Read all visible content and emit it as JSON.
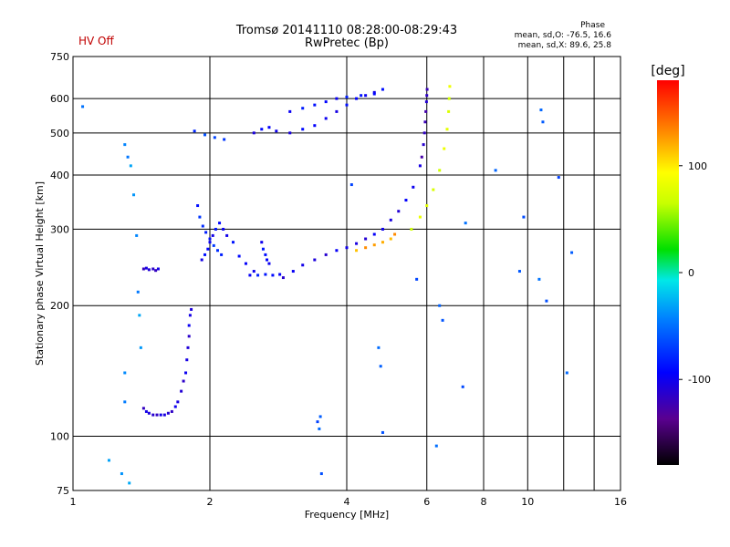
{
  "status": {
    "hv_label": "HV Off"
  },
  "header": {
    "title_line1": "Tromsø 20141110 08:28:00-08:29:43",
    "title_line2": "RwPretec (Bp)",
    "phase_title": "Phase",
    "phase_o": "mean, sd,O: -76.5, 16.6",
    "phase_x": "mean, sd,X: 89.6, 25.8"
  },
  "colorbar": {
    "unit_label": "[deg]",
    "ticks": [
      100,
      0,
      -100
    ],
    "range": [
      -180,
      180
    ]
  },
  "chart_data": {
    "type": "scatter",
    "xlabel": "Frequency [MHz]",
    "ylabel": "Stationary phase Virtual Height [km]",
    "xscale": "log",
    "yscale": "log",
    "xlim": [
      1,
      16
    ],
    "ylim": [
      75,
      750
    ],
    "xticks": [
      1,
      2,
      4,
      6,
      8,
      10,
      16
    ],
    "minor_xticks": [
      12,
      14
    ],
    "yticks": [
      75,
      100,
      200,
      300,
      400,
      500,
      600,
      750
    ],
    "grid": true,
    "series": [
      {
        "x": [
          1.43,
          1.45,
          1.47,
          1.5,
          1.53,
          1.56,
          1.59,
          1.62,
          1.65,
          1.68,
          1.7,
          1.73,
          1.75,
          1.77,
          1.78,
          1.79,
          1.8,
          1.8,
          1.81,
          1.82
        ],
        "y": [
          116,
          114,
          113,
          112,
          112,
          112,
          112,
          113,
          114,
          117,
          120,
          127,
          134,
          140,
          150,
          160,
          170,
          180,
          190,
          196
        ],
        "phase": -110
      },
      {
        "x": [
          1.43,
          1.45,
          1.47,
          1.5,
          1.52,
          1.54
        ],
        "y": [
          243,
          244,
          242,
          243,
          241,
          243
        ],
        "phase": -112
      },
      {
        "x": [
          1.92,
          1.95,
          1.98,
          2.0,
          2.03,
          2.06,
          2.1,
          2.14,
          2.18,
          2.25,
          2.32,
          2.4,
          2.5
        ],
        "y": [
          255,
          262,
          270,
          280,
          290,
          300,
          310,
          300,
          290,
          280,
          260,
          250,
          240
        ],
        "phase": -95
      },
      {
        "x": [
          1.88,
          1.9,
          1.93,
          1.96,
          2.0,
          2.04,
          2.08,
          2.12
        ],
        "y": [
          340,
          320,
          305,
          295,
          285,
          275,
          268,
          262
        ],
        "phase": -80
      },
      {
        "x": [
          2.45,
          2.55,
          2.65,
          2.75,
          2.85
        ],
        "y": [
          235,
          235,
          236,
          235,
          236
        ],
        "phase": -88
      },
      {
        "x": [
          2.6,
          2.62,
          2.65,
          2.67,
          2.7
        ],
        "y": [
          280,
          270,
          262,
          255,
          250
        ],
        "phase": -92
      },
      {
        "x": [
          2.9,
          3.05,
          3.2,
          3.4,
          3.6,
          3.8,
          4.0,
          4.2,
          4.4,
          4.6,
          4.8,
          5.0,
          5.2,
          5.4,
          5.6,
          5.8
        ],
        "y": [
          232,
          240,
          248,
          255,
          262,
          268,
          272,
          278,
          285,
          292,
          300,
          315,
          330,
          350,
          375,
          420
        ],
        "phase": -105
      },
      {
        "x": [
          5.85,
          5.9,
          5.93,
          5.95,
          5.97,
          5.99,
          6.0,
          6.01
        ],
        "y": [
          440,
          470,
          500,
          530,
          560,
          590,
          610,
          630
        ],
        "phase": -120
      },
      {
        "x": [
          4.2,
          4.4,
          4.6,
          4.8,
          5.0,
          5.1
        ],
        "y": [
          268,
          272,
          276,
          280,
          285,
          292
        ],
        "phase": 125
      },
      {
        "x": [
          5.55,
          5.8,
          6.0,
          6.2,
          6.4,
          6.55,
          6.65,
          6.7,
          6.72,
          6.74
        ],
        "y": [
          300,
          320,
          340,
          370,
          410,
          460,
          510,
          560,
          600,
          640
        ],
        "phase": 78
      },
      {
        "x": [
          1.85,
          1.95,
          2.05,
          2.15
        ],
        "y": [
          505,
          495,
          488,
          483
        ],
        "phase": -70
      },
      {
        "x": [
          2.5,
          2.6,
          2.7,
          2.8,
          3.0,
          3.2,
          3.4,
          3.6,
          3.8,
          4.0,
          4.2,
          4.4,
          4.6,
          4.8
        ],
        "y": [
          500,
          510,
          515,
          505,
          500,
          510,
          520,
          540,
          560,
          580,
          600,
          610,
          620,
          630
        ],
        "phase": -98
      },
      {
        "x": [
          3.0,
          3.2,
          3.4,
          3.6,
          3.8,
          4.0,
          4.3,
          4.6
        ],
        "y": [
          560,
          570,
          580,
          590,
          600,
          605,
          610,
          615
        ],
        "phase": -90
      },
      {
        "x": [
          1.05,
          1.2,
          1.28,
          1.3,
          1.32,
          1.34,
          1.36,
          1.38,
          1.39,
          1.4,
          1.41,
          1.3,
          1.3,
          1.33
        ],
        "y": [
          575,
          88,
          82,
          470,
          440,
          420,
          360,
          290,
          215,
          190,
          160,
          140,
          120,
          78
        ],
        "phase": -40
      },
      {
        "x": [
          3.45,
          3.48,
          3.5,
          3.52,
          4.1,
          4.7,
          4.75,
          4.8,
          5.7,
          6.3,
          6.4,
          6.5,
          7.2,
          7.3,
          8.5,
          9.6,
          9.8,
          10.6,
          10.7,
          10.8,
          11.0,
          11.7,
          12.2,
          12.5
        ],
        "y": [
          108,
          104,
          111,
          82,
          380,
          160,
          145,
          102,
          230,
          95,
          200,
          185,
          130,
          310,
          410,
          240,
          320,
          230,
          565,
          530,
          205,
          395,
          140,
          265
        ],
        "phase": -60
      }
    ]
  }
}
